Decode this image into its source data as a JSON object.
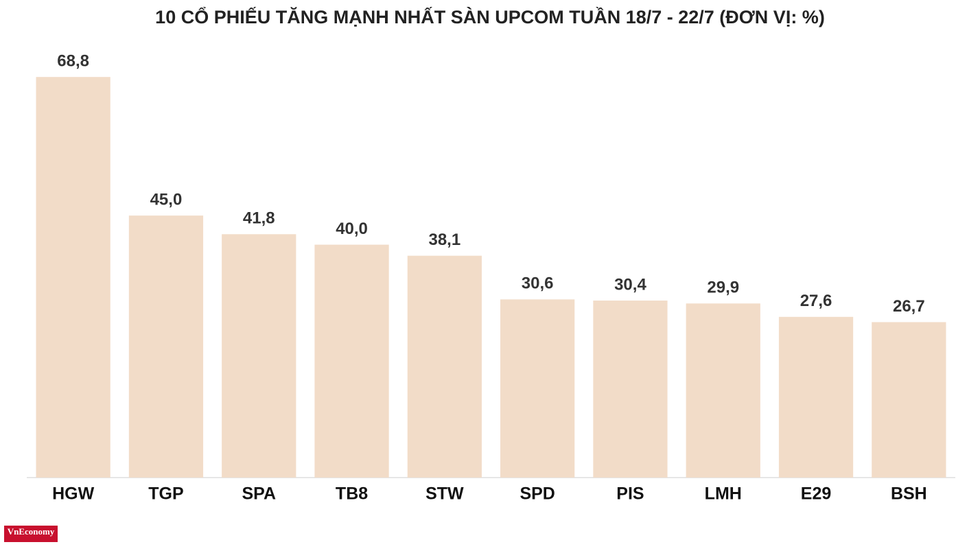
{
  "chart_data": {
    "type": "bar",
    "title": "10 CỔ PHIẾU TĂNG MẠNH NHẤT SÀN UPCOM TUẦN 18/7 - 22/7 (ĐƠN VỊ: %)",
    "categories": [
      "HGW",
      "TGP",
      "SPA",
      "TB8",
      "STW",
      "SPD",
      "PIS",
      "LMH",
      "E29",
      "BSH"
    ],
    "values": [
      68.8,
      45.0,
      41.8,
      40.0,
      38.1,
      30.6,
      30.4,
      29.9,
      27.6,
      26.7
    ],
    "value_labels": [
      "68,8",
      "45,0",
      "41,8",
      "40,0",
      "38,1",
      "30,6",
      "30,4",
      "29,9",
      "27,6",
      "26,7"
    ],
    "color": "#f2dcc8",
    "ylim": [
      0,
      70
    ]
  },
  "logo": "VnEconomy"
}
